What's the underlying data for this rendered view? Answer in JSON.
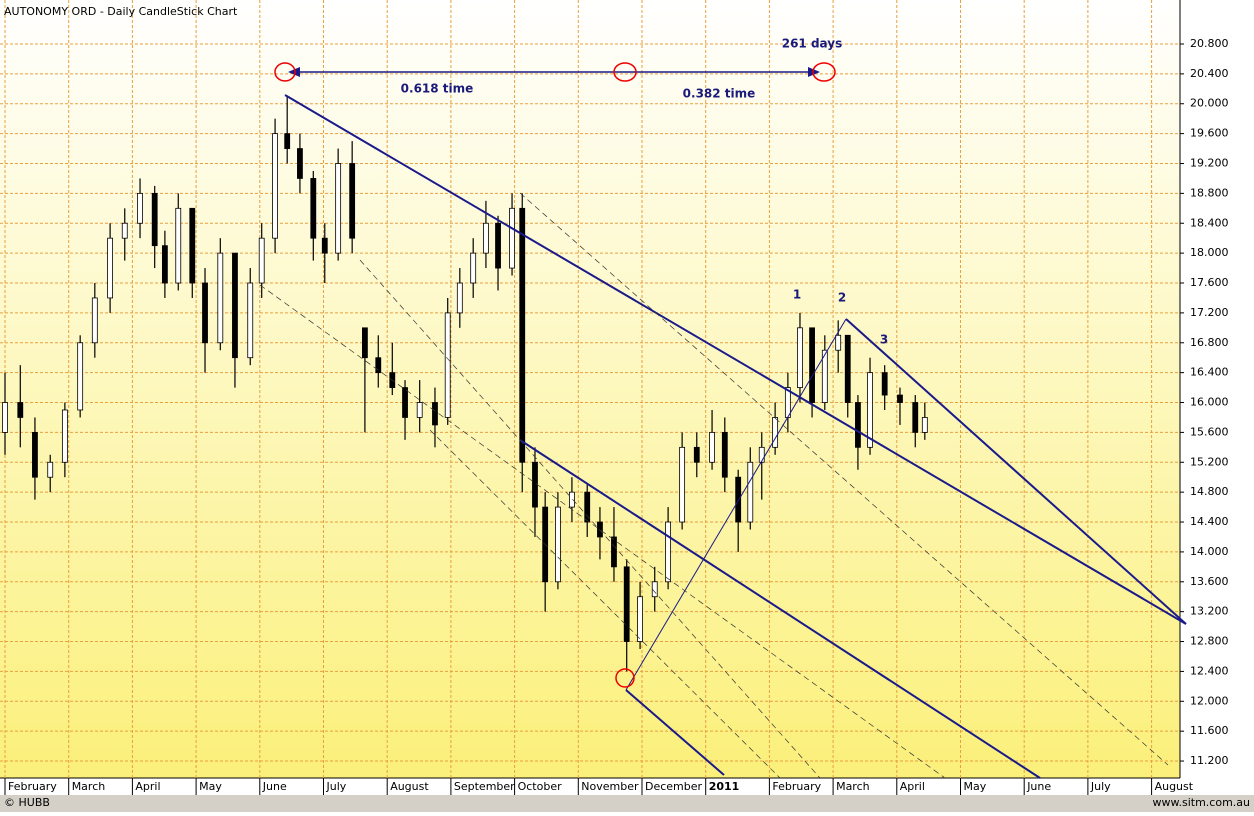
{
  "chart_data": {
    "type": "candlestick",
    "title": "AUTONOMY ORD - Daily CandleStick Chart",
    "x": [
      0.0,
      0.24,
      0.47,
      0.71,
      0.94,
      1.18,
      1.41,
      1.65,
      1.88,
      2.12,
      2.35,
      2.51,
      2.72,
      2.94,
      3.14,
      3.38,
      3.61,
      3.85,
      4.03,
      4.24,
      4.43,
      4.63,
      4.84,
      5.02,
      5.23,
      5.45,
      5.65,
      5.86,
      6.08,
      6.28,
      6.51,
      6.75,
      6.95,
      7.14,
      7.35,
      7.55,
      7.74,
      7.96,
      8.12,
      8.32,
      8.48,
      8.68,
      8.9,
      9.14,
      9.34,
      9.56,
      9.76,
      9.97,
      10.2,
      10.41,
      10.63,
      10.86,
      11.1,
      11.3,
      11.51,
      11.7,
      11.88,
      12.09,
      12.29,
      12.48,
      12.67,
      12.87,
      13.08,
      13.23,
      13.39,
      13.58,
      13.81,
      14.05,
      14.29,
      14.44
    ],
    "open": [
      15.6,
      16.0,
      15.6,
      15.0,
      15.2,
      15.9,
      16.8,
      17.4,
      18.2,
      18.4,
      18.8,
      18.1,
      17.6,
      18.6,
      17.6,
      16.8,
      18.0,
      16.6,
      17.6,
      18.2,
      19.6,
      19.4,
      19.0,
      18.2,
      18.0,
      19.2,
      17.0,
      16.6,
      16.4,
      16.2,
      15.8,
      16.0,
      15.8,
      17.2,
      17.6,
      18.0,
      18.4,
      17.8,
      18.6,
      15.2,
      14.6,
      13.6,
      14.6,
      14.8,
      14.4,
      14.2,
      13.8,
      12.8,
      13.4,
      13.6,
      14.4,
      15.4,
      15.2,
      15.6,
      15.0,
      14.4,
      15.2,
      15.4,
      15.8,
      16.2,
      17.0,
      16.0,
      16.7,
      16.9,
      16.0,
      15.4,
      16.4,
      16.1,
      16.0,
      15.6
    ],
    "high": [
      16.4,
      16.5,
      15.8,
      15.3,
      16.0,
      16.9,
      17.6,
      18.4,
      18.6,
      19.0,
      18.9,
      18.3,
      18.8,
      18.6,
      17.8,
      18.2,
      18.0,
      17.8,
      18.4,
      19.8,
      20.1,
      19.6,
      19.1,
      18.4,
      19.4,
      19.5,
      17.0,
      16.9,
      16.8,
      16.3,
      16.3,
      16.2,
      17.4,
      17.8,
      18.2,
      18.7,
      18.5,
      18.8,
      18.8,
      15.4,
      14.8,
      14.8,
      15.0,
      14.9,
      14.6,
      14.6,
      13.9,
      13.6,
      13.8,
      14.6,
      15.6,
      15.6,
      15.9,
      15.8,
      15.1,
      15.4,
      15.6,
      16.0,
      16.4,
      17.2,
      17.0,
      16.9,
      17.1,
      16.9,
      16.1,
      16.6,
      16.5,
      16.2,
      16.1,
      16.0
    ],
    "low": [
      15.3,
      15.4,
      14.7,
      14.8,
      15.0,
      15.8,
      16.6,
      17.2,
      17.9,
      18.2,
      17.8,
      17.4,
      17.5,
      17.4,
      16.4,
      16.7,
      16.2,
      16.5,
      17.4,
      18.0,
      19.2,
      18.8,
      17.9,
      17.6,
      17.9,
      18.0,
      15.6,
      16.2,
      16.1,
      15.5,
      15.6,
      15.4,
      15.7,
      17.0,
      17.4,
      17.8,
      17.5,
      17.7,
      14.8,
      14.2,
      13.2,
      13.5,
      14.4,
      14.2,
      13.9,
      13.6,
      12.4,
      12.7,
      13.2,
      13.5,
      14.3,
      15.0,
      15.1,
      14.8,
      14.0,
      14.3,
      14.7,
      15.3,
      15.6,
      16.0,
      15.8,
      15.9,
      16.4,
      15.8,
      15.1,
      15.3,
      15.9,
      15.7,
      15.4,
      15.5
    ],
    "close": [
      16.0,
      15.8,
      15.0,
      15.2,
      15.9,
      16.8,
      17.4,
      18.2,
      18.4,
      18.8,
      18.1,
      17.6,
      18.6,
      17.6,
      16.8,
      18.0,
      16.6,
      17.6,
      18.2,
      19.6,
      19.4,
      19.0,
      18.2,
      18.0,
      19.2,
      18.2,
      16.6,
      16.4,
      16.2,
      15.8,
      16.0,
      15.7,
      17.2,
      17.6,
      18.0,
      18.4,
      17.8,
      18.6,
      15.2,
      14.6,
      13.6,
      14.6,
      14.8,
      14.4,
      14.2,
      13.8,
      12.8,
      13.4,
      13.6,
      14.4,
      15.4,
      15.2,
      15.6,
      15.0,
      14.4,
      15.2,
      15.4,
      15.8,
      16.2,
      17.0,
      16.0,
      16.7,
      16.9,
      16.0,
      15.4,
      16.4,
      16.1,
      16.0,
      15.6,
      15.8
    ],
    "color": "#000000",
    "xlim": [
      -0.0785,
      18.446
    ],
    "xticks": [
      {
        "value": 0,
        "label": "February"
      },
      {
        "value": 1,
        "label": "March"
      },
      {
        "value": 2,
        "label": "April"
      },
      {
        "value": 3,
        "label": "May"
      },
      {
        "value": 4,
        "label": "June"
      },
      {
        "value": 5,
        "label": "July"
      },
      {
        "value": 6,
        "label": "August"
      },
      {
        "value": 7,
        "label": "September"
      },
      {
        "value": 8,
        "label": "October"
      },
      {
        "value": 9,
        "label": "November"
      },
      {
        "value": 10,
        "label": "December"
      },
      {
        "value": 11,
        "label": "2011"
      },
      {
        "value": 12,
        "label": "February"
      },
      {
        "value": 13,
        "label": "March"
      },
      {
        "value": 14,
        "label": "April"
      },
      {
        "value": 15,
        "label": "May"
      },
      {
        "value": 16,
        "label": "June"
      },
      {
        "value": 17,
        "label": "July"
      },
      {
        "value": 18,
        "label": "August"
      }
    ],
    "ylim": [
      10.973,
      21.389
    ],
    "yticks": [
      {
        "value": 11.2,
        "label": "11.200"
      },
      {
        "value": 11.6,
        "label": "11.600"
      },
      {
        "value": 12.0,
        "label": "12.000"
      },
      {
        "value": 12.4,
        "label": "12.400"
      },
      {
        "value": 12.8,
        "label": "12.800"
      },
      {
        "value": 13.2,
        "label": "13.200"
      },
      {
        "value": 13.6,
        "label": "13.600"
      },
      {
        "value": 14.0,
        "label": "14.000"
      },
      {
        "value": 14.4,
        "label": "14.400"
      },
      {
        "value": 14.8,
        "label": "14.800"
      },
      {
        "value": 15.2,
        "label": "15.200"
      },
      {
        "value": 15.6,
        "label": "15.600"
      },
      {
        "value": 16.0,
        "label": "16.000"
      },
      {
        "value": 16.4,
        "label": "16.400"
      },
      {
        "value": 16.8,
        "label": "16.800"
      },
      {
        "value": 17.2,
        "label": "17.200"
      },
      {
        "value": 17.6,
        "label": "17.600"
      },
      {
        "value": 18.0,
        "label": "18.000"
      },
      {
        "value": 18.4,
        "label": "18.400"
      },
      {
        "value": 18.8,
        "label": "18.800"
      },
      {
        "value": 19.2,
        "label": "19.200"
      },
      {
        "value": 19.6,
        "label": "19.600"
      },
      {
        "value": 20.0,
        "label": "20.000"
      },
      {
        "value": 20.4,
        "label": "20.400"
      },
      {
        "value": 20.8,
        "label": "20.800"
      }
    ],
    "grid": true,
    "annotations": [
      "261 days",
      "0.618 time",
      "0.382 time",
      "1",
      "2",
      "3"
    ]
  },
  "footer": {
    "left": "© HUBB",
    "right": "www.sitm.com.au"
  }
}
